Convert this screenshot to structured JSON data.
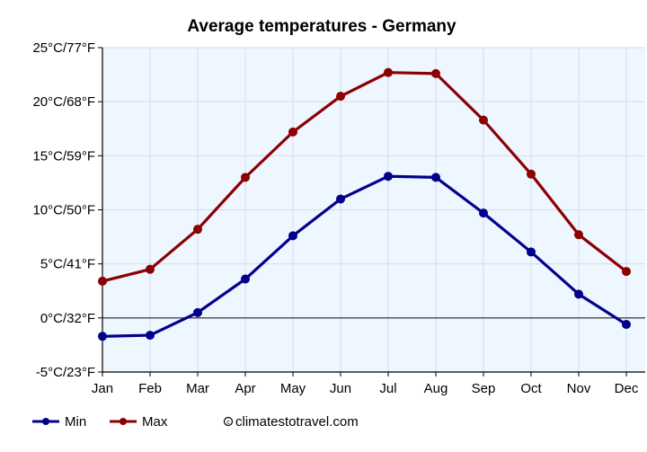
{
  "chart_data": {
    "type": "line",
    "title": "Average temperatures - Germany",
    "categories": [
      "Jan",
      "Feb",
      "Mar",
      "Apr",
      "May",
      "Jun",
      "Jul",
      "Aug",
      "Sep",
      "Oct",
      "Nov",
      "Dec"
    ],
    "series": [
      {
        "name": "Min",
        "color": "#00008b",
        "values": [
          -1.7,
          -1.6,
          0.5,
          3.6,
          7.6,
          11.0,
          13.1,
          13.0,
          9.7,
          6.1,
          2.2,
          -0.6
        ]
      },
      {
        "name": "Max",
        "color": "#8b0000",
        "values": [
          3.4,
          4.5,
          8.2,
          13.0,
          17.2,
          20.5,
          22.7,
          22.6,
          18.3,
          13.3,
          7.7,
          4.3
        ]
      }
    ],
    "y_ticks": [
      {
        "value": 25,
        "label": "25°C/77°F"
      },
      {
        "value": 20,
        "label": "20°C/68°F"
      },
      {
        "value": 15,
        "label": "15°C/59°F"
      },
      {
        "value": 10,
        "label": "10°C/50°F"
      },
      {
        "value": 5,
        "label": "5°C/41°F"
      },
      {
        "value": 0,
        "label": "0°C/32°F"
      },
      {
        "value": -5,
        "label": "-5°C/23°F"
      }
    ],
    "ylim": [
      -5,
      25
    ],
    "grid": true,
    "legend": "bottom-left",
    "credit": "climatestotravel.com"
  },
  "colors": {
    "plot_background": "#eef6ff",
    "grid": "#d4dde8",
    "axis": "#000000"
  }
}
